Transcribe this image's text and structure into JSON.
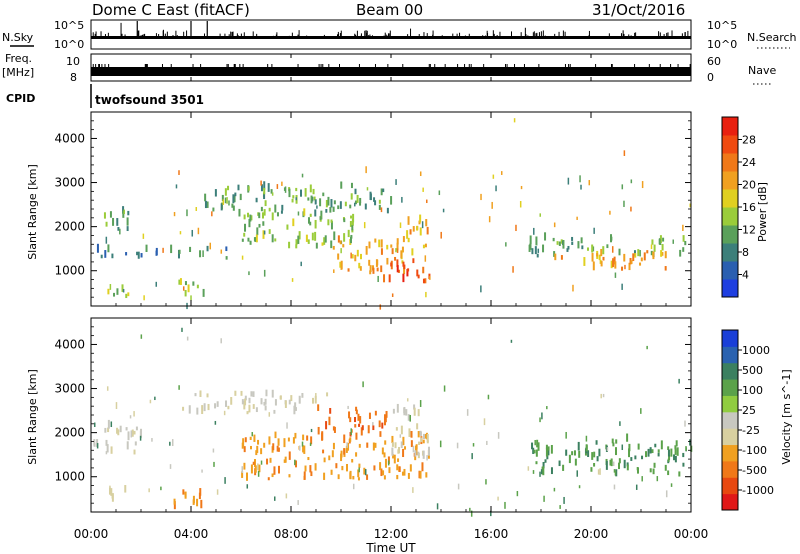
{
  "header": {
    "station": "Dome C East (fitACF)",
    "beam": "Beam 00",
    "date": "31/Oct/2016"
  },
  "strip_panels": {
    "nsky_label": "N.Sky",
    "nsky_ticks": [
      "10^5",
      "10^0"
    ],
    "nsearch_label": "N.Search",
    "nsearch_ticks": [
      "10^5",
      "10^0"
    ],
    "freq_label": "Freq.",
    "freq_unit": "[MHz]",
    "freq_ticks": [
      "10",
      "8"
    ],
    "nave_label": "Nave",
    "nave_ticks": [
      "60",
      "0"
    ],
    "cpid_label": "CPID",
    "cpid_value": "twofsound 3501"
  },
  "colors": {
    "power_scale": [
      "#1f3fe0",
      "#2a5fb0",
      "#3c7f7a",
      "#5aa05a",
      "#9acc3a",
      "#e0d020",
      "#f0a020",
      "#f07818",
      "#f04a10",
      "#e82010"
    ],
    "velocity_scale": [
      "#1a3fd8",
      "#2a62b0",
      "#3b8060",
      "#5ba24a",
      "#90cc40",
      "#c8c8c0",
      "#d8d0a0",
      "#f0a020",
      "#f07818",
      "#e84810",
      "#e01818"
    ]
  },
  "chart_data": [
    {
      "type": "heatmap",
      "title": "Power",
      "xlabel": "Time UT",
      "ylabel": "Slant Range [km]",
      "x_ticks": [
        "00:00",
        "04:00",
        "08:00",
        "12:00",
        "16:00",
        "20:00",
        "00:00"
      ],
      "x_range_hours": [
        0,
        24
      ],
      "y_ticks": [
        1000,
        2000,
        3000,
        4000
      ],
      "ylim": [
        200,
        4600
      ],
      "colorbar": {
        "label": "Power [dB]",
        "ticks": [
          "4",
          "8",
          "12",
          "16",
          "20",
          "24",
          "28"
        ],
        "range": [
          0,
          32
        ]
      },
      "regions": [
        {
          "t0": 0.0,
          "t1": 1.5,
          "r0": 1900,
          "r1": 2300,
          "v": 10
        },
        {
          "t0": 0.0,
          "t1": 5.5,
          "r0": 1250,
          "r1": 1450,
          "v": 8
        },
        {
          "t0": 0.5,
          "t1": 1.8,
          "r0": 380,
          "r1": 650,
          "v": 14
        },
        {
          "t0": 3.2,
          "t1": 4.5,
          "r0": 380,
          "r1": 700,
          "v": 14
        },
        {
          "t0": 4.5,
          "t1": 9.5,
          "r0": 2200,
          "r1": 2850,
          "v": 11
        },
        {
          "t0": 6.0,
          "t1": 10.5,
          "r0": 1500,
          "r1": 2300,
          "v": 13
        },
        {
          "t0": 9.5,
          "t1": 12.0,
          "r0": 2300,
          "r1": 2900,
          "v": 10
        },
        {
          "t0": 9.5,
          "t1": 12.5,
          "r0": 900,
          "r1": 1700,
          "v": 22
        },
        {
          "t0": 11.5,
          "t1": 13.5,
          "r0": 700,
          "r1": 1200,
          "v": 28
        },
        {
          "t0": 12.5,
          "t1": 13.5,
          "r0": 1300,
          "r1": 2100,
          "v": 20
        },
        {
          "t0": 17.5,
          "t1": 24.0,
          "r0": 1300,
          "r1": 1700,
          "v": 11
        },
        {
          "t0": 18.5,
          "t1": 23.0,
          "r0": 1000,
          "r1": 1400,
          "v": 22
        }
      ]
    },
    {
      "type": "heatmap",
      "title": "Velocity",
      "xlabel": "Time UT",
      "ylabel": "Slant Range [km]",
      "x_ticks": [
        "00:00",
        "04:00",
        "08:00",
        "12:00",
        "16:00",
        "20:00",
        "00:00"
      ],
      "x_range_hours": [
        0,
        24
      ],
      "y_ticks": [
        1000,
        2000,
        3000,
        4000
      ],
      "ylim": [
        200,
        4600
      ],
      "colorbar": {
        "label": "Velocity [m s^-1]",
        "ticks": [
          "1000",
          "500",
          "100",
          "25",
          "-25",
          "-100",
          "-500",
          "-1000"
        ]
      },
      "regions": [
        {
          "t0": 0.0,
          "t1": 2.0,
          "r0": 1500,
          "r1": 2100,
          "v": "gray"
        },
        {
          "t0": 3.5,
          "t1": 9.5,
          "r0": 2400,
          "r1": 2850,
          "v": "gray"
        },
        {
          "t0": 0.5,
          "t1": 1.5,
          "r0": 380,
          "r1": 650,
          "v": "tan"
        },
        {
          "t0": 3.2,
          "t1": 4.6,
          "r0": 250,
          "r1": 700,
          "v": "orange"
        },
        {
          "t0": 6.0,
          "t1": 13.5,
          "r0": 900,
          "r1": 1900,
          "v": "orange"
        },
        {
          "t0": 9.0,
          "t1": 11.8,
          "r0": 1900,
          "r1": 2500,
          "v": "darkorange"
        },
        {
          "t0": 12.0,
          "t1": 13.5,
          "r0": 1400,
          "r1": 2600,
          "v": "gray"
        },
        {
          "t0": 17.5,
          "t1": 24.0,
          "r0": 1000,
          "r1": 1800,
          "v": "green"
        }
      ]
    }
  ]
}
